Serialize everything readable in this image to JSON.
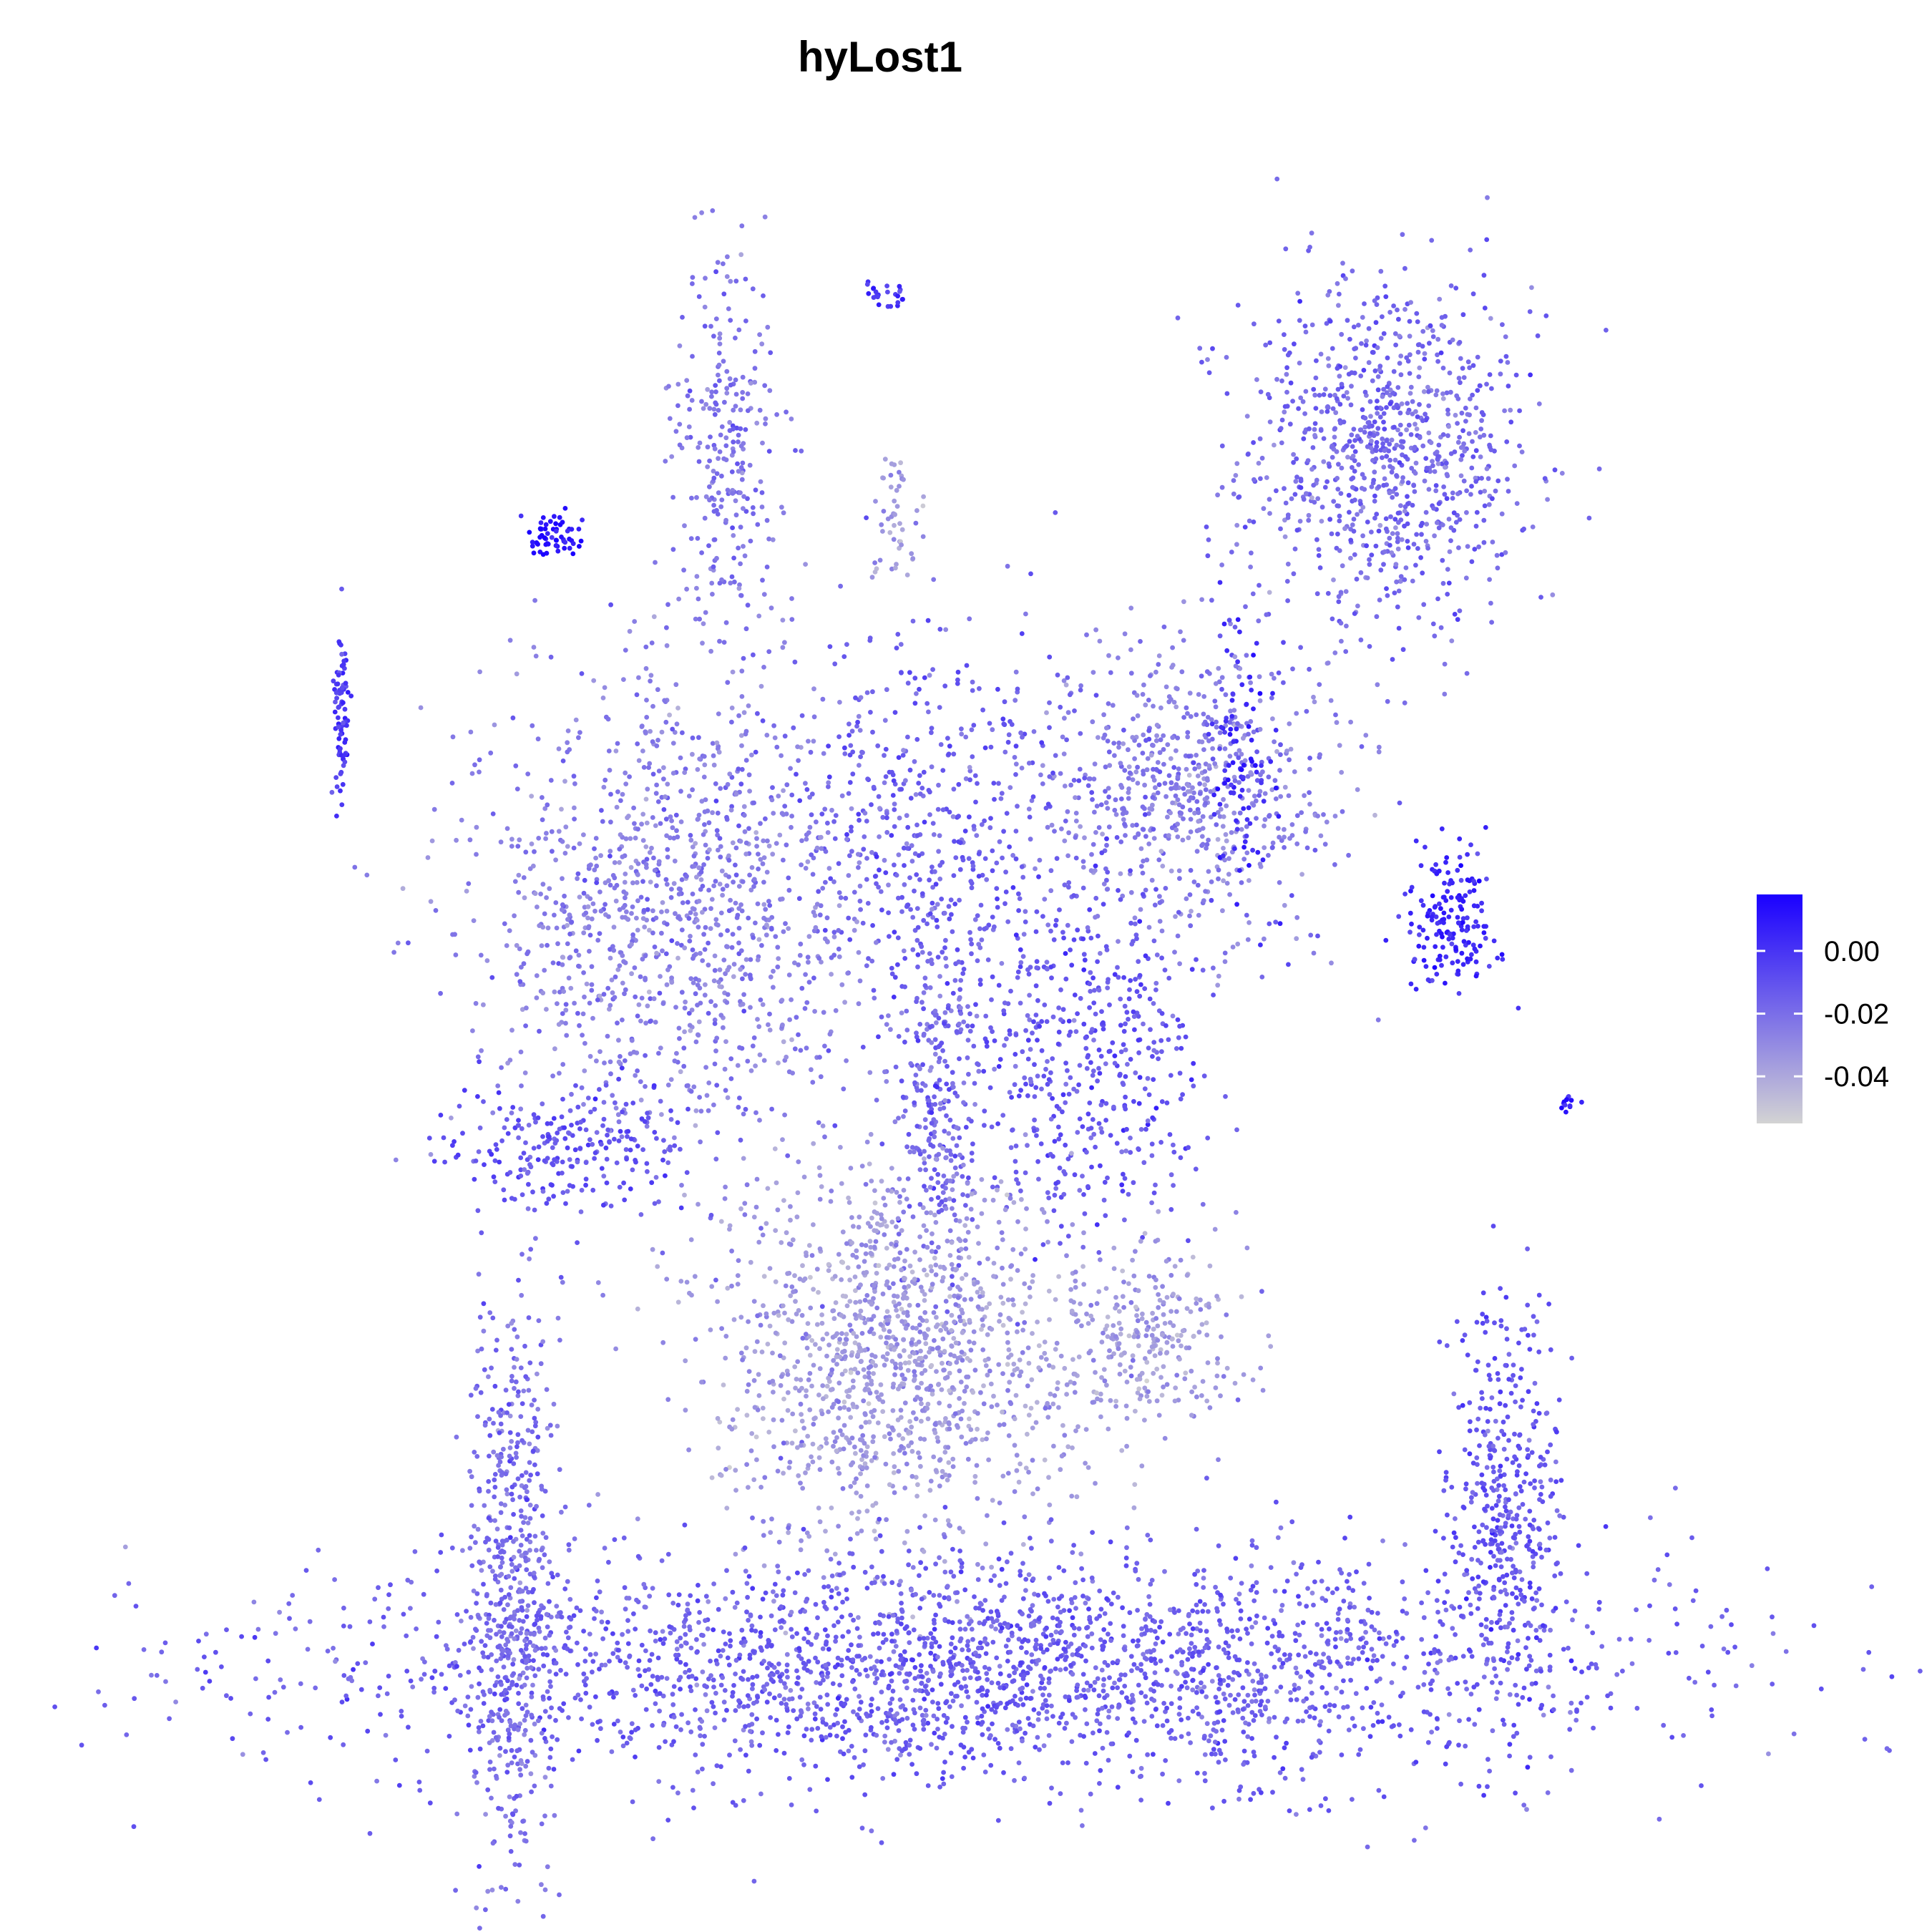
{
  "chart_data": {
    "type": "scatter",
    "title": "hyLost1",
    "xlabel": "",
    "ylabel": "",
    "grid": false,
    "axes_visible": false,
    "legend": {
      "kind": "colorbar",
      "placement": "right",
      "range": [
        -0.055,
        0.018
      ],
      "ticks": [
        0.0,
        -0.02,
        -0.04
      ],
      "tick_labels": [
        "0.00",
        "-0.02",
        "-0.04"
      ],
      "color_low": "#d3d3d3",
      "color_high": "#1a00ff"
    },
    "xlim": [
      0,
      1
    ],
    "ylim": [
      0,
      1
    ],
    "clusters": [
      {
        "name": "top-right block",
        "cx": 0.81,
        "cy": 0.835,
        "sx": 0.055,
        "sy": 0.055,
        "n": 900,
        "value": -0.018
      },
      {
        "name": "top-left streak",
        "cx": 0.31,
        "cy": 0.84,
        "sx": 0.02,
        "sy": 0.055,
        "n": 260,
        "value": -0.022
      },
      {
        "name": "top tiny",
        "cx": 0.43,
        "cy": 0.93,
        "sx": 0.008,
        "sy": 0.005,
        "n": 25,
        "value": 0.0
      },
      {
        "name": "far-left strip",
        "cx": 0.02,
        "cy": 0.68,
        "sx": 0.003,
        "sy": 0.025,
        "n": 80,
        "value": -0.002
      },
      {
        "name": "left isolated",
        "cx": 0.18,
        "cy": 0.785,
        "sx": 0.012,
        "sy": 0.006,
        "n": 60,
        "value": 0.012
      },
      {
        "name": "center-top small",
        "cx": 0.44,
        "cy": 0.8,
        "sx": 0.01,
        "sy": 0.025,
        "n": 50,
        "value": -0.035
      },
      {
        "name": "middle-right mass",
        "cx": 0.66,
        "cy": 0.63,
        "sx": 0.06,
        "sy": 0.045,
        "n": 700,
        "value": -0.025
      },
      {
        "name": "center upper",
        "cx": 0.47,
        "cy": 0.6,
        "sx": 0.06,
        "sy": 0.065,
        "n": 500,
        "value": -0.015
      },
      {
        "name": "left fan",
        "cx": 0.27,
        "cy": 0.56,
        "sx": 0.075,
        "sy": 0.075,
        "n": 1200,
        "value": -0.025
      },
      {
        "name": "left lower arm",
        "cx": 0.19,
        "cy": 0.415,
        "sx": 0.045,
        "sy": 0.02,
        "n": 220,
        "value": -0.01
      },
      {
        "name": "center vertical arm",
        "cx": 0.47,
        "cy": 0.44,
        "sx": 0.015,
        "sy": 0.06,
        "n": 260,
        "value": -0.018
      },
      {
        "name": "center-right fan",
        "cx": 0.58,
        "cy": 0.47,
        "sx": 0.05,
        "sy": 0.05,
        "n": 480,
        "value": -0.012
      },
      {
        "name": "right cluster",
        "cx": 0.86,
        "cy": 0.55,
        "sx": 0.018,
        "sy": 0.022,
        "n": 170,
        "value": 0.005
      },
      {
        "name": "right upper",
        "cx": 0.7,
        "cy": 0.65,
        "sx": 0.012,
        "sy": 0.04,
        "n": 90,
        "value": 0.004
      },
      {
        "name": "far right tiny",
        "cx": 0.95,
        "cy": 0.44,
        "sx": 0.005,
        "sy": 0.004,
        "n": 12,
        "value": 0.005
      },
      {
        "name": "lower center mass",
        "cx": 0.44,
        "cy": 0.29,
        "sx": 0.07,
        "sy": 0.055,
        "n": 1300,
        "value": -0.035
      },
      {
        "name": "right diagonal",
        "cx": 0.63,
        "cy": 0.3,
        "sx": 0.035,
        "sy": 0.025,
        "n": 260,
        "value": -0.035
      },
      {
        "name": "bottom arc",
        "cx": 0.5,
        "cy": 0.1,
        "sx": 0.25,
        "sy": 0.035,
        "n": 2600,
        "value": -0.015
      },
      {
        "name": "bottom-right arm",
        "cx": 0.9,
        "cy": 0.2,
        "sx": 0.02,
        "sy": 0.06,
        "n": 420,
        "value": -0.012
      },
      {
        "name": "left arc edge",
        "cx": 0.15,
        "cy": 0.15,
        "sx": 0.018,
        "sy": 0.09,
        "n": 550,
        "value": -0.02
      }
    ]
  }
}
